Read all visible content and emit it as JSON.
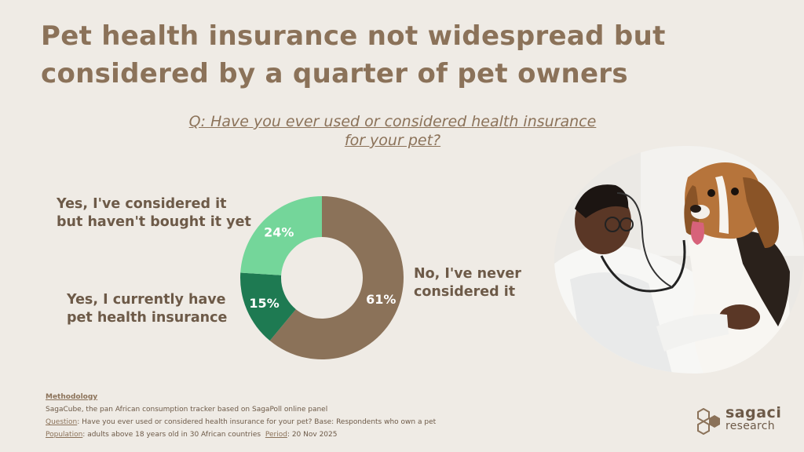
{
  "title": "Pet health insurance not widespread but considered by a quarter of pet owners",
  "question": "Q: Have you ever used or considered health insurance for your pet?",
  "chart_data": {
    "type": "pie",
    "donut": true,
    "categories": [
      "No, I've never considered it",
      "Yes, I currently have pet health insurance",
      "Yes, I've considered it but haven't bought it yet"
    ],
    "values": [
      61,
      15,
      24
    ],
    "value_labels": [
      "61%",
      "15%",
      "24%"
    ],
    "colors": [
      "#8b7259",
      "#1e7a52",
      "#74d69a"
    ]
  },
  "labels": {
    "no": [
      "No, I've never",
      "considered it"
    ],
    "current": [
      "Yes, I currently have",
      "pet health insurance"
    ],
    "considered": [
      "Yes, I've considered it",
      "but haven't bought it yet"
    ]
  },
  "methodology": {
    "heading": "Methodology",
    "line1": "SagaCube, the pan African consumption tracker based on SagaPoll online panel",
    "question_label": "Question",
    "question_text": ": Have you ever used or considered health insurance for your pet? Base: Respondents who own a pet",
    "population_label": "Population",
    "population_text": ": adults above 18 years old in 30 African countries",
    "period_label": "Period",
    "period_text": ": 20 Nov 2025"
  },
  "logo": {
    "line1": "sagaci",
    "line2": "research"
  },
  "photo": {
    "description_icon": "vet-with-beagle-photo"
  }
}
